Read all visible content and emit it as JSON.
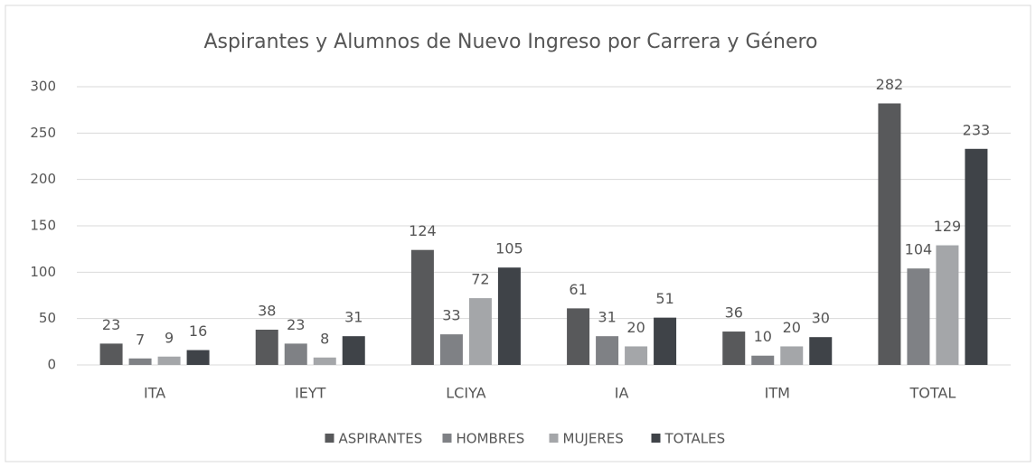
{
  "chart_data": {
    "type": "bar",
    "title": "Aspirantes y Alumnos de Nuevo Ingreso por Carrera y Género",
    "categories": [
      "ITA",
      "IEYT",
      "LCIYA",
      "IA",
      "ITM",
      "TOTAL"
    ],
    "series": [
      {
        "name": "ASPIRANTES",
        "color": "#58595b",
        "values": [
          23,
          38,
          124,
          61,
          36,
          282
        ]
      },
      {
        "name": "HOMBRES",
        "color": "#7f8185",
        "values": [
          7,
          23,
          33,
          31,
          10,
          104
        ]
      },
      {
        "name": "MUJERES",
        "color": "#a4a6a9",
        "values": [
          9,
          8,
          72,
          20,
          20,
          129
        ]
      },
      {
        "name": "TOTALES",
        "color": "#3f4348",
        "values": [
          16,
          31,
          105,
          51,
          30,
          233
        ]
      }
    ],
    "ylim": [
      0,
      300
    ],
    "yticks": [
      0,
      50,
      100,
      150,
      200,
      250,
      300
    ],
    "grid": true,
    "legend": "bottom"
  }
}
